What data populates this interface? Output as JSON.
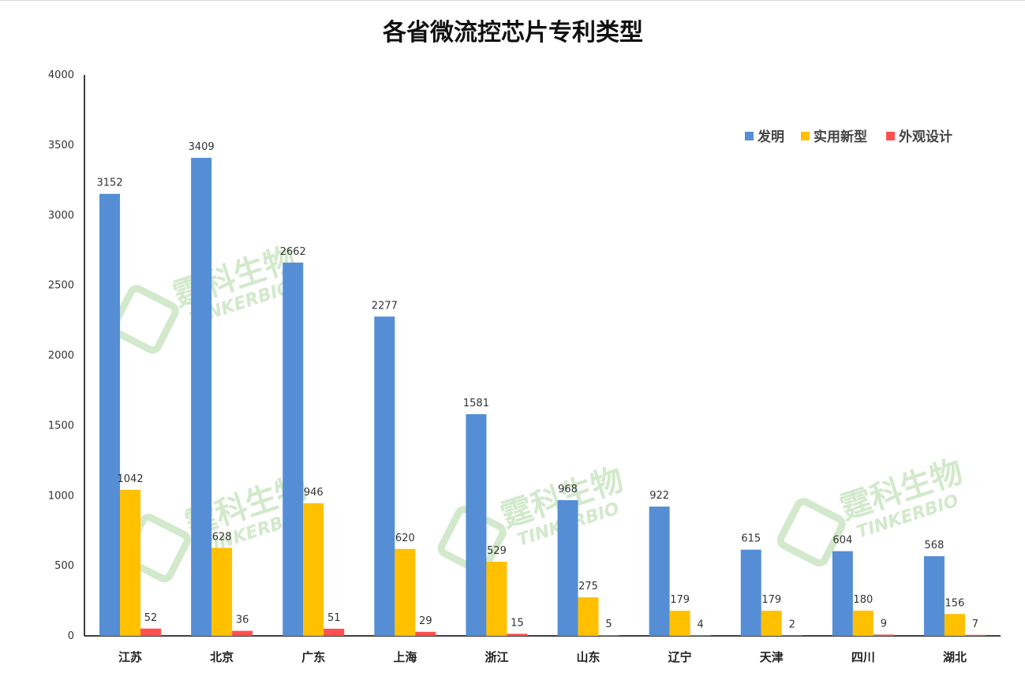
{
  "chart_data": {
    "type": "bar",
    "title": "各省微流控芯片专利类型",
    "categories": [
      "江苏",
      "北京",
      "广东",
      "上海",
      "浙江",
      "山东",
      "辽宁",
      "天津",
      "四川",
      "湖北"
    ],
    "series": [
      {
        "name": "发明",
        "color": "#558ed5",
        "values": [
          3152,
          3409,
          2662,
          2277,
          1581,
          968,
          922,
          615,
          604,
          568
        ]
      },
      {
        "name": "实用新型",
        "color": "#ffc000",
        "values": [
          1042,
          628,
          946,
          620,
          529,
          275,
          179,
          179,
          180,
          156
        ]
      },
      {
        "name": "外观设计",
        "color": "#ff5050",
        "values": [
          52,
          36,
          51,
          29,
          15,
          5,
          4,
          2,
          9,
          7
        ]
      }
    ],
    "ylim": [
      0,
      4000
    ],
    "yticks": [
      0,
      500,
      1000,
      1500,
      2000,
      2500,
      3000,
      3500,
      4000
    ],
    "xlabel": "",
    "ylabel": "",
    "grid": false,
    "legend_position": "top-right"
  },
  "watermark": {
    "text_cn": "霆科生物",
    "text_en": "TINKERBIO",
    "color": "#7fbf6a"
  }
}
